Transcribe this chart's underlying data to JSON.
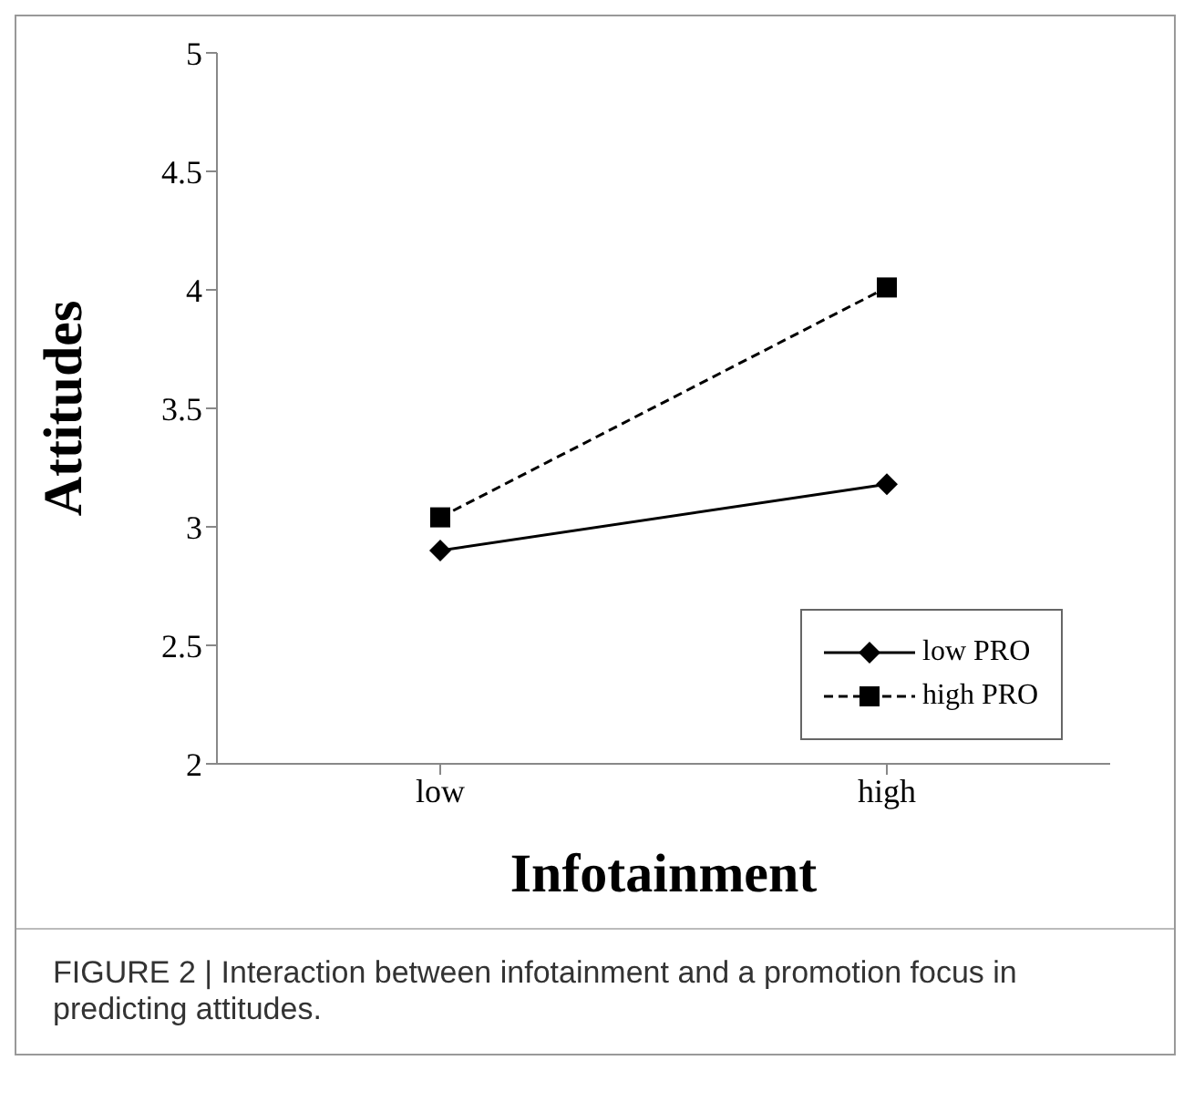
{
  "chart_data": {
    "type": "line",
    "xlabel": "Infotainment",
    "ylabel": "Attitudes",
    "categories": [
      "low",
      "high"
    ],
    "series": [
      {
        "name": "low PRO",
        "color": "#000000",
        "values": [
          2.9,
          3.18
        ],
        "marker": "diamond",
        "line_style": "solid"
      },
      {
        "name": "high PRO",
        "color": "#000000",
        "values": [
          3.04,
          4.01
        ],
        "marker": "square",
        "line_style": "dashed"
      }
    ],
    "ylim": [
      2,
      5
    ],
    "yticks": [
      2,
      2.5,
      3,
      3.5,
      4,
      4.5,
      5
    ],
    "grid": false,
    "legend": "bottom right",
    "annotations": [
      "FIGURE 2 | Interaction between infotainment and a promotion focus in predicting attitudes."
    ]
  }
}
